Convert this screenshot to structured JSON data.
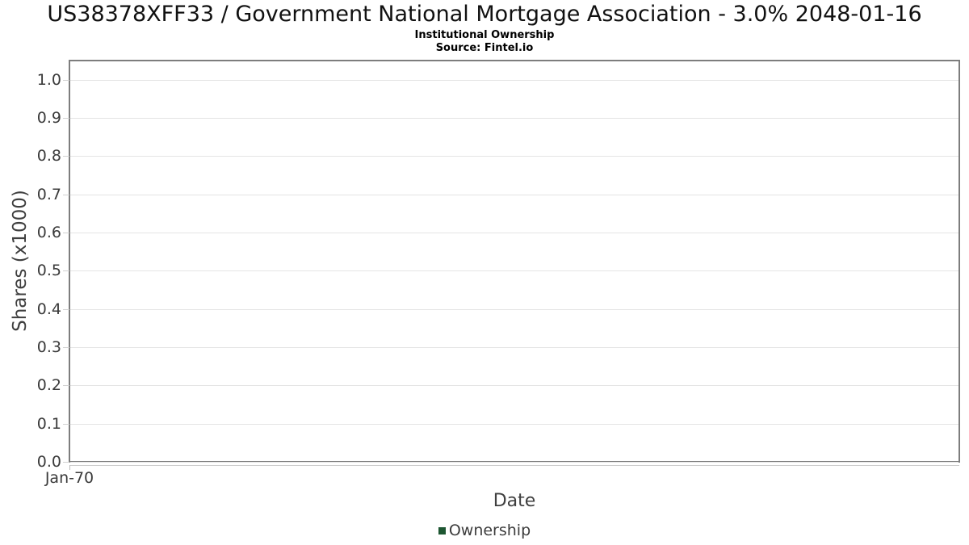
{
  "header": {
    "title": "US38378XFF33 / Government National Mortgage Association - 3.0% 2048-01-16",
    "subtitle": "Institutional Ownership",
    "source": "Source: Fintel.io"
  },
  "chart_data": {
    "type": "line",
    "title": "US38378XFF33 / Government National Mortgage Association - 3.0% 2048-01-16",
    "subtitle": "Institutional Ownership",
    "source": "Source: Fintel.io",
    "xlabel": "Date",
    "ylabel": "Shares (x1000)",
    "ylim": [
      0,
      1.05
    ],
    "yticks": [
      0.0,
      0.1,
      0.2,
      0.3,
      0.4,
      0.5,
      0.6,
      0.7,
      0.8,
      0.9,
      1.0
    ],
    "ytick_labels": [
      "0.0",
      "0.1",
      "0.2",
      "0.3",
      "0.4",
      "0.5",
      "0.6",
      "0.7",
      "0.8",
      "0.9",
      "1.0"
    ],
    "xtick_labels": [
      "Jan-70"
    ],
    "grid": "horizontal-only",
    "legend": {
      "position": "bottom",
      "entries": [
        {
          "label": "Ownership",
          "marker_color": "#1d5631"
        }
      ]
    },
    "series": [
      {
        "name": "Ownership",
        "color": "#1d5631",
        "x": [],
        "y": []
      }
    ]
  },
  "colors": {
    "plot_border": "#7d7d7d",
    "gridline": "#e4e4e4",
    "text_dark": "#3a3a3a",
    "series_green": "#1d5631"
  }
}
